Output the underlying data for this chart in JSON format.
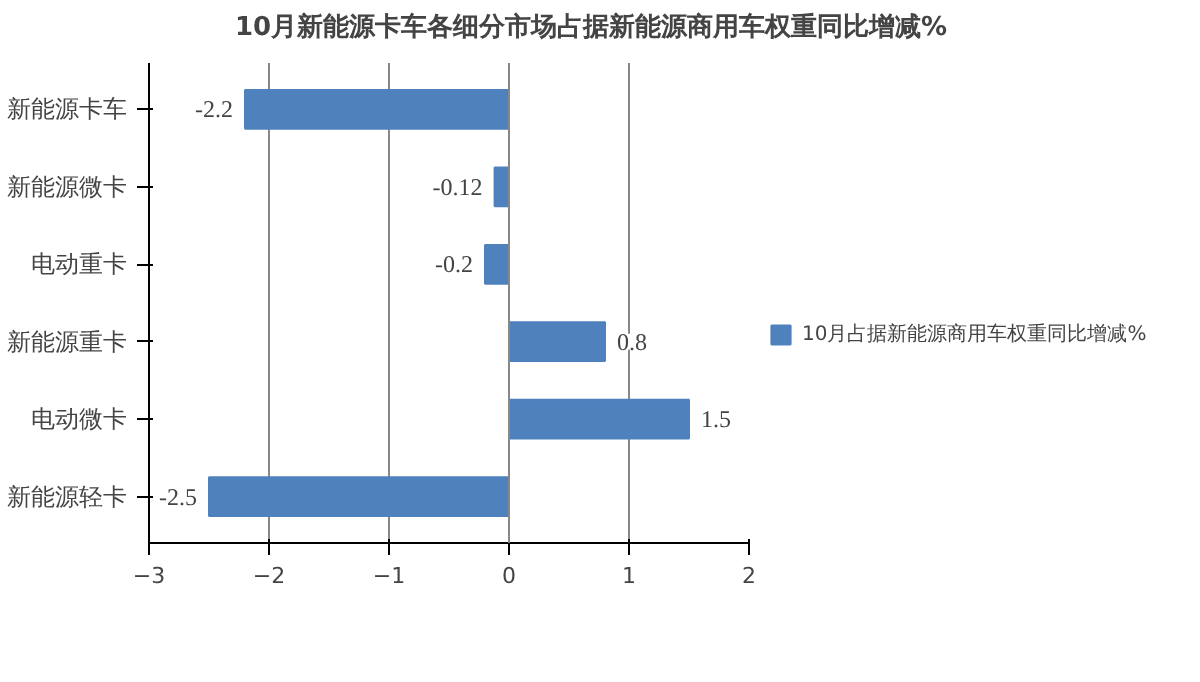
{
  "chart_data": {
    "type": "bar",
    "orientation": "horizontal",
    "title": "10月新能源卡车各细分市场占据新能源商用车权重同比增减%",
    "categories": [
      "新能源卡车",
      "新能源微卡",
      "电动重卡",
      "新能源重卡",
      "电动微卡",
      "新能源轻卡"
    ],
    "series": [
      {
        "name": "10月占据新能源商用车权重同比增减%",
        "color": "#4f81bd",
        "values": [
          -2.2,
          -0.12,
          -0.2,
          0.8,
          1.5,
          -2.5
        ]
      }
    ],
    "xlim": [
      -3,
      2
    ],
    "xticks": [
      -3,
      -2,
      -1,
      0,
      1,
      2
    ],
    "grid": "x",
    "legend": "right",
    "data_labels": true
  }
}
